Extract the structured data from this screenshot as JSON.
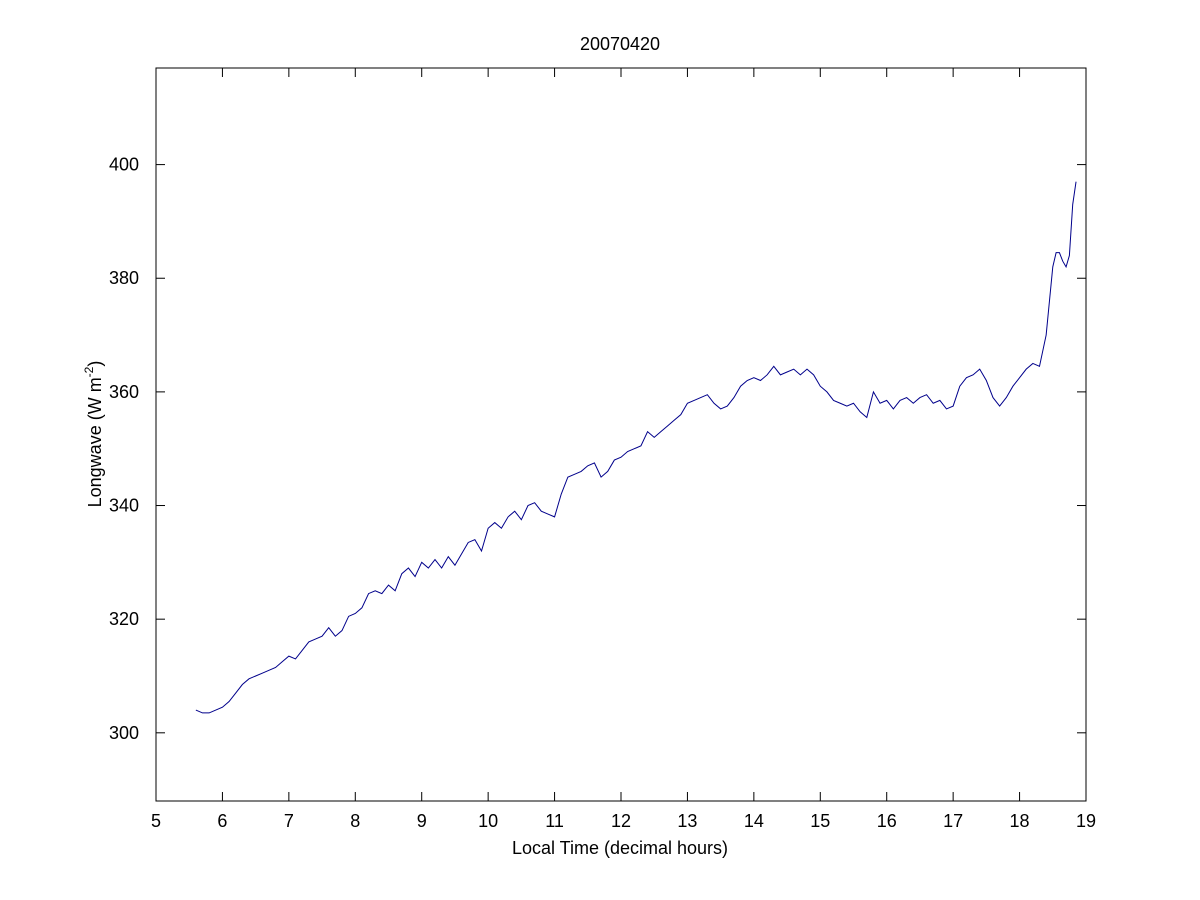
{
  "chart_data": {
    "type": "line",
    "title": "20070420",
    "x_label": "Local Time (decimal hours)",
    "y_label": {
      "text": "Longwave (W m",
      "sup": "-2",
      "end": ")"
    },
    "xlim": [
      5,
      19
    ],
    "xticks": [
      5,
      6,
      7,
      8,
      9,
      10,
      11,
      12,
      13,
      14,
      15,
      16,
      17,
      18,
      19
    ],
    "ylim": [
      288,
      417
    ],
    "yticks": [
      300,
      320,
      340,
      360,
      380,
      400
    ],
    "series": [
      {
        "color": "#00008b",
        "x": [
          5.6,
          5.7,
          5.8,
          5.9,
          6.0,
          6.1,
          6.2,
          6.3,
          6.4,
          6.5,
          6.6,
          6.7,
          6.8,
          6.9,
          7.0,
          7.1,
          7.2,
          7.3,
          7.4,
          7.5,
          7.6,
          7.7,
          7.8,
          7.9,
          8.0,
          8.1,
          8.2,
          8.3,
          8.4,
          8.5,
          8.6,
          8.7,
          8.8,
          8.9,
          9.0,
          9.1,
          9.2,
          9.3,
          9.4,
          9.5,
          9.6,
          9.7,
          9.8,
          9.9,
          10.0,
          10.1,
          10.2,
          10.3,
          10.4,
          10.5,
          10.6,
          10.7,
          10.8,
          10.9,
          11.0,
          11.1,
          11.2,
          11.3,
          11.4,
          11.5,
          11.6,
          11.7,
          11.8,
          11.9,
          12.0,
          12.1,
          12.2,
          12.3,
          12.4,
          12.5,
          12.6,
          12.7,
          12.8,
          12.9,
          13.0,
          13.1,
          13.2,
          13.3,
          13.4,
          13.5,
          13.6,
          13.7,
          13.8,
          13.9,
          14.0,
          14.1,
          14.2,
          14.3,
          14.4,
          14.5,
          14.6,
          14.7,
          14.8,
          14.9,
          15.0,
          15.1,
          15.2,
          15.3,
          15.4,
          15.5,
          15.6,
          15.7,
          15.8,
          15.9,
          16.0,
          16.1,
          16.2,
          16.3,
          16.4,
          16.5,
          16.6,
          16.7,
          16.8,
          16.9,
          17.0,
          17.1,
          17.2,
          17.3,
          17.4,
          17.5,
          17.6,
          17.7,
          17.8,
          17.9,
          18.0,
          18.1,
          18.2,
          18.3,
          18.4,
          18.5,
          18.55,
          18.6,
          18.65,
          18.7,
          18.75,
          18.8,
          18.85
        ],
        "values": [
          304,
          303.5,
          303.5,
          304,
          304.5,
          305.5,
          307,
          308.5,
          309.5,
          310,
          310.5,
          311,
          311.5,
          312.5,
          313.5,
          313,
          314.5,
          316,
          316.5,
          317,
          318.5,
          317,
          318,
          320.5,
          321,
          322,
          324.5,
          325,
          324.5,
          326,
          325,
          328,
          329,
          327.5,
          330,
          329,
          330.5,
          329,
          331,
          329.5,
          331.5,
          333.5,
          334,
          332,
          336,
          337,
          336,
          338,
          339,
          337.5,
          340,
          340.5,
          339,
          338.5,
          338,
          342,
          345,
          345.5,
          346,
          347,
          347.5,
          345,
          346,
          348,
          348.5,
          349.5,
          350,
          350.5,
          353,
          352,
          353,
          354,
          355,
          356,
          358,
          358.5,
          359,
          359.5,
          358,
          357,
          357.5,
          359,
          361,
          362,
          362.5,
          362,
          363,
          364.5,
          363,
          363.5,
          364,
          363,
          364,
          363,
          361,
          360,
          358.5,
          358,
          357.5,
          358,
          356.5,
          355.5,
          360,
          358,
          358.5,
          357,
          358.5,
          359,
          358,
          359,
          359.5,
          358,
          358.5,
          357,
          357.5,
          361,
          362.5,
          363,
          364,
          362,
          359,
          357.5,
          359,
          361,
          362.5,
          364,
          365,
          364.5,
          370,
          382,
          384.5,
          384.5,
          383,
          382,
          384,
          393,
          397
        ]
      }
    ]
  }
}
